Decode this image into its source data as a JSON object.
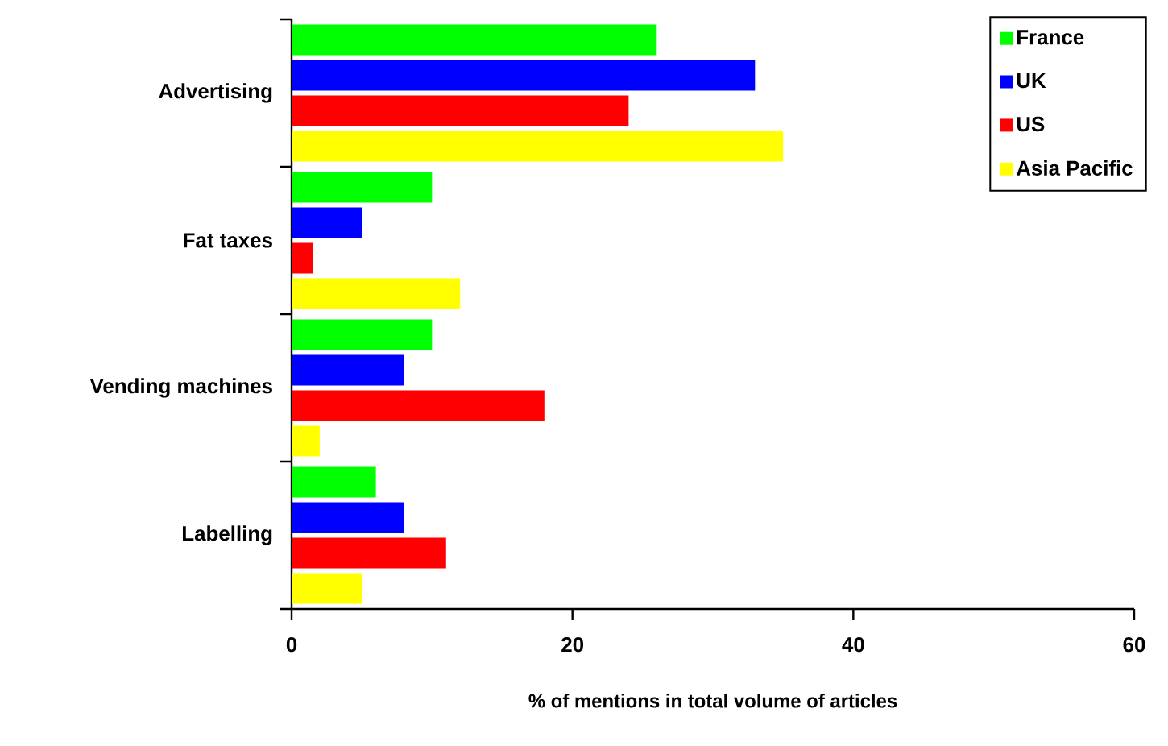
{
  "chart_data": {
    "type": "bar",
    "orientation": "horizontal",
    "xlabel": "% of mentions in total volume of articles",
    "categories": [
      "Advertising",
      "Fat taxes",
      "Vending machines",
      "Labelling"
    ],
    "series": [
      {
        "name": "France",
        "color": "#00ff00",
        "values": [
          26,
          10,
          10,
          6
        ]
      },
      {
        "name": "UK",
        "color": "#0000ff",
        "values": [
          33,
          5,
          8,
          8
        ]
      },
      {
        "name": "US",
        "color": "#ff0000",
        "values": [
          24,
          1.5,
          18,
          11
        ]
      },
      {
        "name": "Asia Pacific",
        "color": "#ffff00",
        "values": [
          35,
          12,
          2,
          5
        ]
      }
    ],
    "xlim": [
      0,
      60
    ],
    "xticks": [
      0,
      20,
      40,
      60
    ],
    "grid": false,
    "legend": "top right"
  }
}
